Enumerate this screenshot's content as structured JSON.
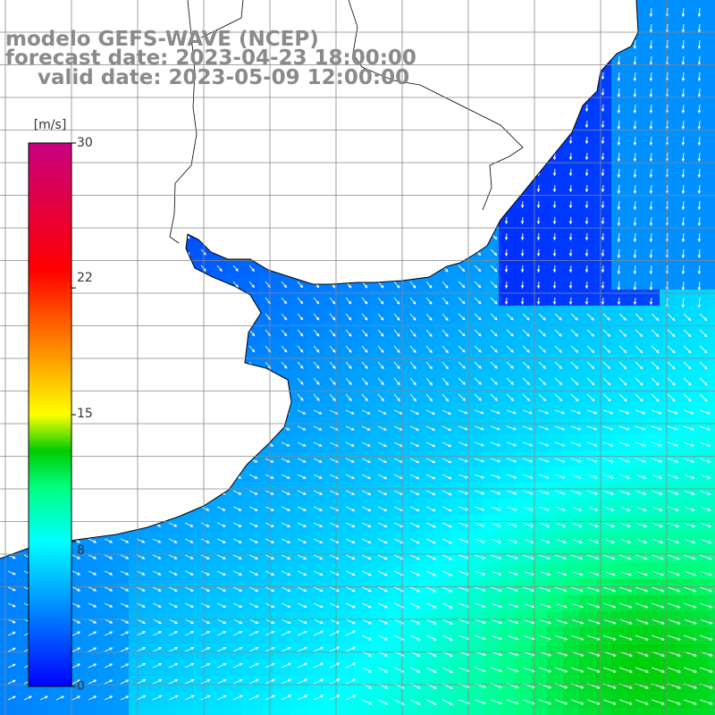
{
  "title": {
    "line1": "modelo GEFS-WAVE (NCEP)",
    "line2": "forecast date: 2023-04-23 18:00:00",
    "line3": "valid date: 2023-05-09 12:00:00"
  },
  "colorbar": {
    "unit": "[m/s]",
    "ticks": [
      "30",
      "22",
      "15",
      "8",
      "0"
    ],
    "tick_values": [
      30,
      22,
      15,
      8,
      0
    ],
    "min": 0,
    "max": 30,
    "stops": [
      {
        "value": 0,
        "color": "#0000ff"
      },
      {
        "value": 4,
        "color": "#0080ff"
      },
      {
        "value": 8,
        "color": "#00ffff"
      },
      {
        "value": 11,
        "color": "#00ff80"
      },
      {
        "value": 13,
        "color": "#00cc00"
      },
      {
        "value": 15,
        "color": "#ffff00"
      },
      {
        "value": 19,
        "color": "#ff8000"
      },
      {
        "value": 23,
        "color": "#ff0000"
      },
      {
        "value": 30,
        "color": "#c80080"
      }
    ]
  },
  "map": {
    "land_color": "#ffffff",
    "coast_color": "#000000",
    "grid_color": "#888888",
    "arrow_color": "#ffffff"
  }
}
